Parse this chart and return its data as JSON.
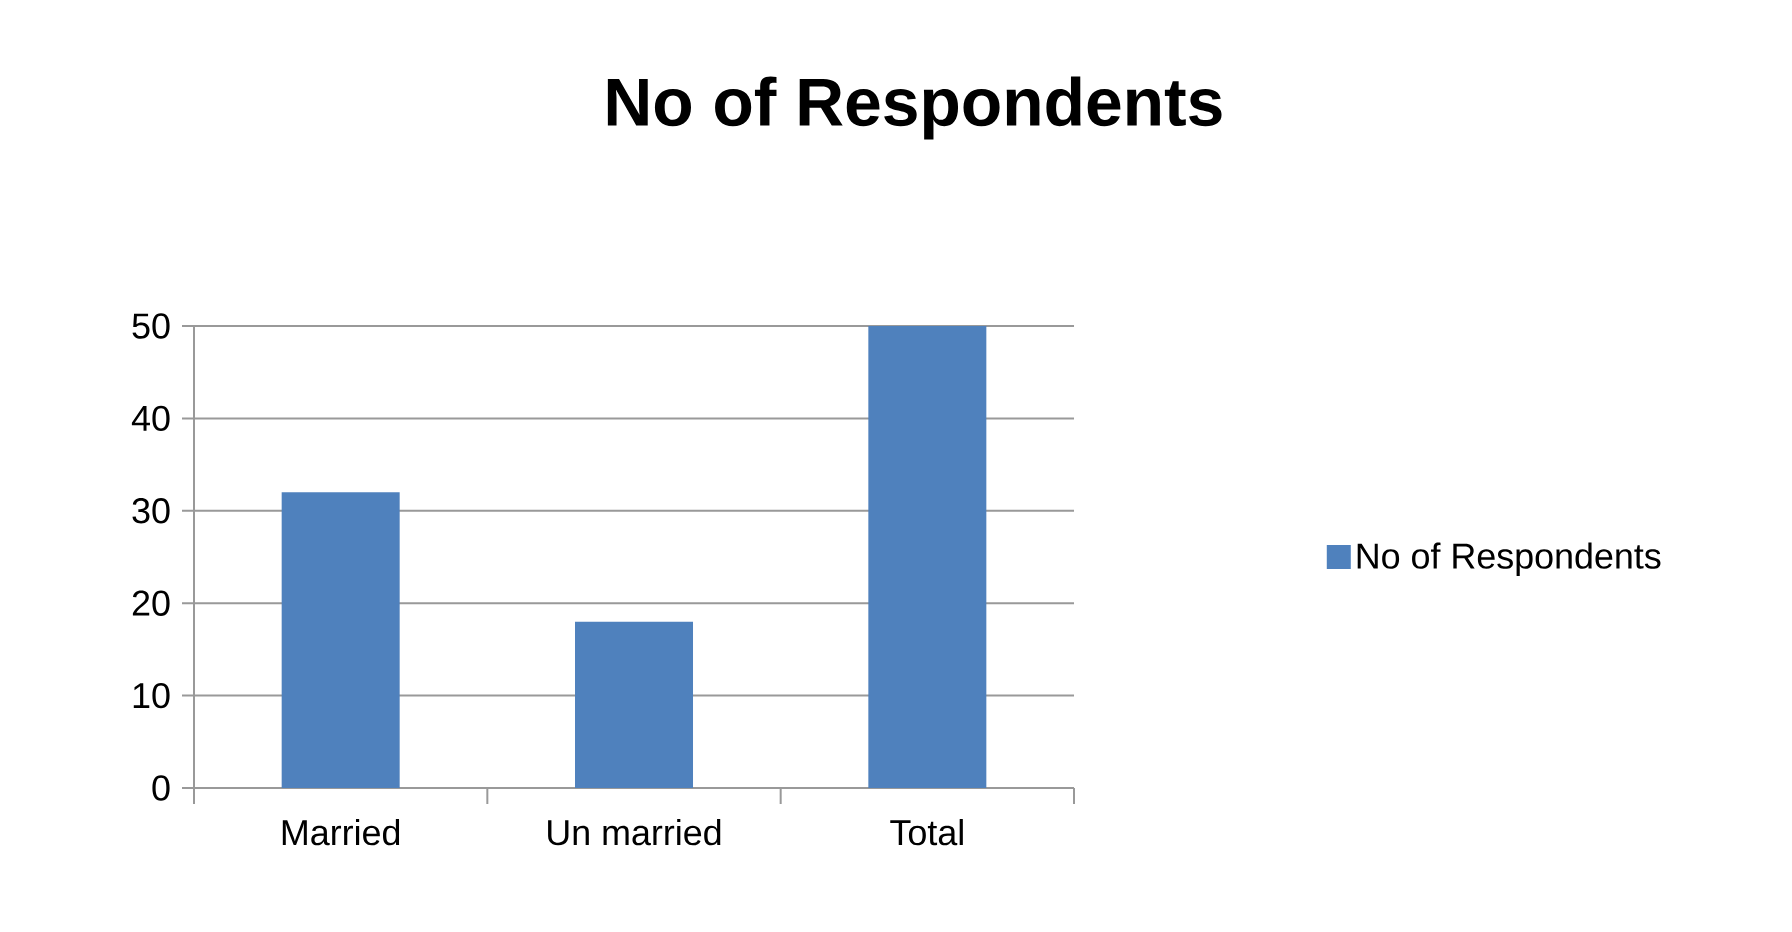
{
  "chart_data": {
    "type": "bar",
    "title": "No of Respondents",
    "categories": [
      "Married",
      "Un married",
      "Total"
    ],
    "series": [
      {
        "name": "No of Respondents",
        "color": "#4f81bd",
        "values": [
          32,
          18,
          50
        ]
      }
    ],
    "ylim": [
      0,
      50
    ],
    "yticks": [
      0,
      10,
      20,
      30,
      40,
      50
    ],
    "grid": "y",
    "legend": "right"
  }
}
